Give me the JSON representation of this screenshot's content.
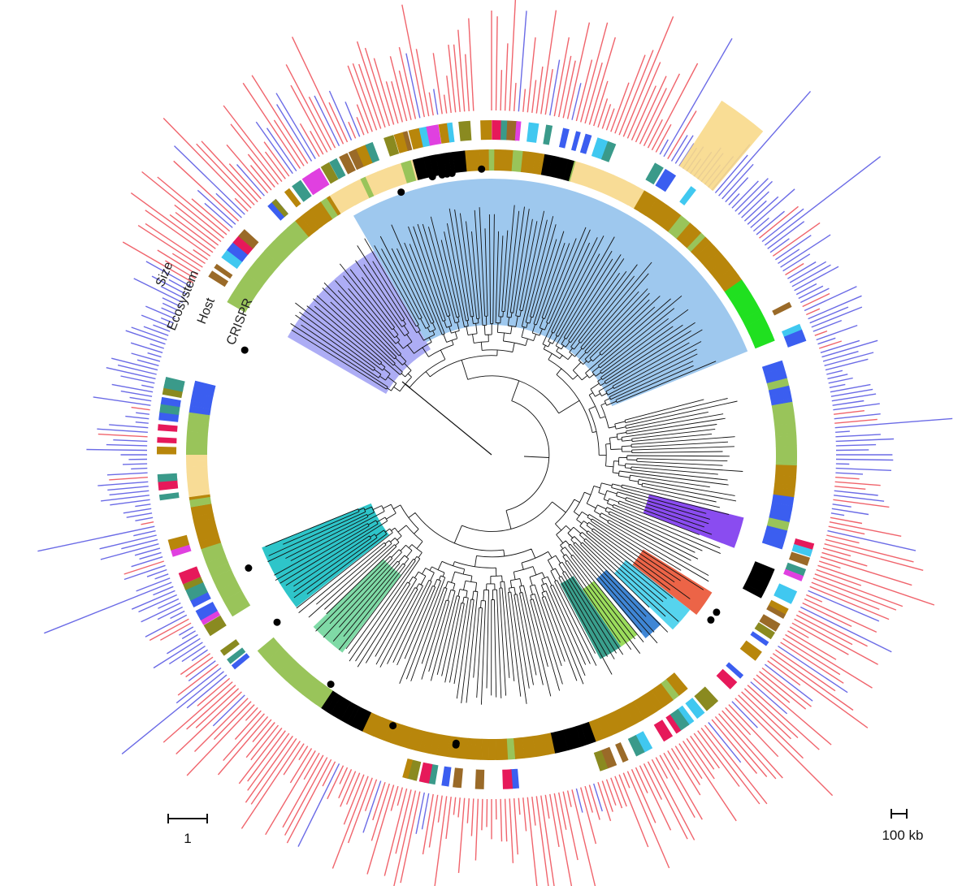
{
  "ring_labels": {
    "size": "Size",
    "ecosystem": "Ecosystem",
    "host": "Host",
    "crispr": "CRISPR"
  },
  "scale_bars": {
    "tree": "1",
    "genome": "100 kb"
  },
  "colors": {
    "size_red": "#f0646c",
    "size_blue": "#6b6be6",
    "size_yellow": "#f8d98a",
    "clade_lightblue": "#9ec8ee",
    "clade_lavender": "#adadf5",
    "clade_cyan": "#2ec5c9",
    "clade_mint": "#7fdaa6",
    "clade_purple": "#8a4cf0",
    "clade_orange": "#ec6447",
    "clade_skyblue": "#56d4ee",
    "clade_blue": "#3f86d5",
    "clade_teal": "#3aa08d",
    "clade_lime": "#9bdc5c",
    "host_gold": "#b8860b",
    "host_olive": "#99c45a",
    "host_cream": "#f8dc96",
    "host_green": "#20e020",
    "host_royal": "#3b5ef0",
    "host_black": "#000000",
    "eco_crimson": "#e6195a",
    "eco_teal": "#3a9a8a",
    "eco_cyan": "#40c8f0",
    "eco_magenta": "#e040e0",
    "eco_brown": "#9a6a28",
    "eco_olive": "#8a8a20",
    "tree_line": "#111111",
    "crispr_dot": "#000000"
  },
  "clades": [
    {
      "name": "clade-lightblue",
      "color": "#9ec8ee"
    },
    {
      "name": "clade-lavender",
      "color": "#adadf5"
    },
    {
      "name": "clade-cyan",
      "color": "#2ec5c9"
    },
    {
      "name": "clade-mint",
      "color": "#7fdaa6"
    },
    {
      "name": "clade-purple",
      "color": "#8a4cf0"
    },
    {
      "name": "clade-orange",
      "color": "#ec6447"
    },
    {
      "name": "clade-skyblue",
      "color": "#56d4ee"
    },
    {
      "name": "clade-blue",
      "color": "#3f86d5"
    },
    {
      "name": "clade-teal",
      "color": "#3aa08d"
    },
    {
      "name": "clade-lime",
      "color": "#9bdc5c"
    }
  ]
}
